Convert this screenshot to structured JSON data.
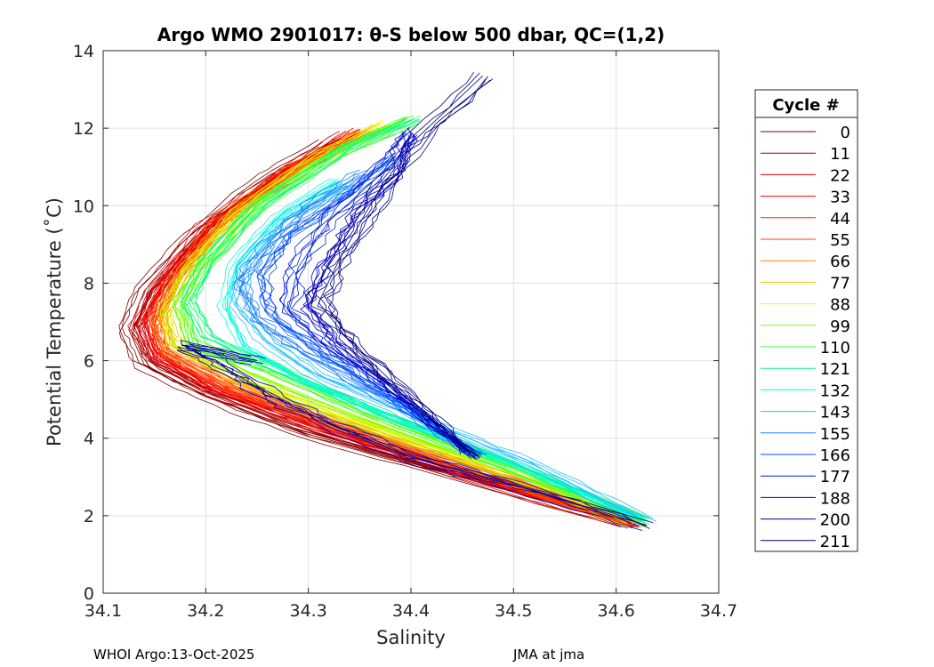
{
  "chart_data": {
    "type": "line",
    "title": "Argo WMO 2901017: θ-S below 500 dbar,  QC=(1,2)",
    "xlabel": "Salinity",
    "ylabel": "Potential Temperature (˚C)",
    "xlim": [
      34.1,
      34.7
    ],
    "ylim": [
      0,
      14
    ],
    "xticks": [
      "34.1",
      "34.2",
      "34.3",
      "34.4",
      "34.5",
      "34.6",
      "34.7"
    ],
    "yticks": [
      "0",
      "2",
      "4",
      "6",
      "8",
      "10",
      "12",
      "14"
    ],
    "grid": true,
    "legend": {
      "title": "Cycle #",
      "placement": "right-outside"
    },
    "series": [
      {
        "name": "0",
        "color": "#800000",
        "points": [
          [
            34.612,
            1.8
          ],
          [
            34.45,
            3.0
          ],
          [
            34.3,
            4.1
          ],
          [
            34.2,
            5.1
          ],
          [
            34.14,
            5.9
          ],
          [
            34.125,
            6.8
          ],
          [
            34.14,
            7.8
          ],
          [
            34.19,
            9.2
          ],
          [
            34.26,
            10.7
          ],
          [
            34.32,
            11.6
          ]
        ]
      },
      {
        "name": "11",
        "color": "#a00000",
        "points": [
          [
            34.614,
            1.8
          ],
          [
            34.45,
            3.05
          ],
          [
            34.3,
            4.2
          ],
          [
            34.2,
            5.2
          ],
          [
            34.145,
            6.0
          ],
          [
            34.13,
            6.9
          ],
          [
            34.15,
            7.9
          ],
          [
            34.2,
            9.4
          ],
          [
            34.27,
            10.8
          ],
          [
            34.33,
            11.7
          ]
        ]
      },
      {
        "name": "22",
        "color": "#e00000",
        "points": [
          [
            34.615,
            1.8
          ],
          [
            34.46,
            3.0
          ],
          [
            34.31,
            4.3
          ],
          [
            34.21,
            5.2
          ],
          [
            34.15,
            6.1
          ],
          [
            34.135,
            6.9
          ],
          [
            34.155,
            8.0
          ],
          [
            34.2,
            9.5
          ],
          [
            34.28,
            10.9
          ],
          [
            34.34,
            11.9
          ]
        ]
      },
      {
        "name": "33",
        "color": "#ff0000",
        "points": [
          [
            34.615,
            1.82
          ],
          [
            34.46,
            3.05
          ],
          [
            34.31,
            4.3
          ],
          [
            34.21,
            5.3
          ],
          [
            34.15,
            6.2
          ],
          [
            34.14,
            7.0
          ],
          [
            34.16,
            8.1
          ],
          [
            34.21,
            9.6
          ],
          [
            34.28,
            11.0
          ],
          [
            34.35,
            11.9
          ]
        ]
      },
      {
        "name": "44",
        "color": "#ff2000",
        "points": [
          [
            34.616,
            1.82
          ],
          [
            34.47,
            3.1
          ],
          [
            34.32,
            4.35
          ],
          [
            34.22,
            5.3
          ],
          [
            34.155,
            6.2
          ],
          [
            34.145,
            7.0
          ],
          [
            34.165,
            8.1
          ],
          [
            34.21,
            9.6
          ],
          [
            34.29,
            11.0
          ],
          [
            34.35,
            11.9
          ]
        ]
      },
      {
        "name": "55",
        "color": "#ff4000",
        "points": [
          [
            34.617,
            1.83
          ],
          [
            34.47,
            3.1
          ],
          [
            34.32,
            4.4
          ],
          [
            34.22,
            5.35
          ],
          [
            34.16,
            6.2
          ],
          [
            34.15,
            7.0
          ],
          [
            34.17,
            8.1
          ],
          [
            34.22,
            9.7
          ],
          [
            34.29,
            11.0
          ],
          [
            34.34,
            11.8
          ]
        ]
      },
      {
        "name": "66",
        "color": "#ff8000",
        "points": [
          [
            34.618,
            1.83
          ],
          [
            34.48,
            3.1
          ],
          [
            34.33,
            4.4
          ],
          [
            34.23,
            5.4
          ],
          [
            34.165,
            6.3
          ],
          [
            34.155,
            7.1
          ],
          [
            34.175,
            8.2
          ],
          [
            34.22,
            9.7
          ],
          [
            34.3,
            11.1
          ],
          [
            34.36,
            11.9
          ]
        ]
      },
      {
        "name": "77",
        "color": "#ffc000",
        "points": [
          [
            34.62,
            1.84
          ],
          [
            34.48,
            3.15
          ],
          [
            34.34,
            4.45
          ],
          [
            34.23,
            5.45
          ],
          [
            34.17,
            6.4
          ],
          [
            34.16,
            7.2
          ],
          [
            34.18,
            8.3
          ],
          [
            34.23,
            9.8
          ],
          [
            34.31,
            11.2
          ],
          [
            34.37,
            12.0
          ]
        ]
      },
      {
        "name": "88",
        "color": "#e0ff00",
        "points": [
          [
            34.62,
            1.84
          ],
          [
            34.49,
            3.15
          ],
          [
            34.34,
            4.5
          ],
          [
            34.24,
            5.5
          ],
          [
            34.17,
            6.4
          ],
          [
            34.165,
            7.3
          ],
          [
            34.185,
            8.3
          ],
          [
            34.235,
            9.8
          ],
          [
            34.31,
            11.2
          ],
          [
            34.38,
            12.1
          ]
        ]
      },
      {
        "name": "99",
        "color": "#80ff00",
        "points": [
          [
            34.622,
            1.85
          ],
          [
            34.49,
            3.2
          ],
          [
            34.35,
            4.5
          ],
          [
            34.25,
            5.6
          ],
          [
            34.18,
            6.5
          ],
          [
            34.17,
            7.4
          ],
          [
            34.19,
            8.4
          ],
          [
            34.24,
            9.9
          ],
          [
            34.32,
            11.3
          ],
          [
            34.39,
            12.2
          ]
        ]
      },
      {
        "name": "110",
        "color": "#40ff40",
        "points": [
          [
            34.624,
            1.85
          ],
          [
            34.5,
            3.2
          ],
          [
            34.36,
            4.6
          ],
          [
            34.26,
            5.8
          ],
          [
            34.19,
            6.3
          ],
          [
            34.175,
            7.5
          ],
          [
            34.2,
            8.5
          ],
          [
            34.25,
            10.0
          ],
          [
            34.33,
            11.4
          ],
          [
            34.4,
            12.2
          ]
        ]
      },
      {
        "name": "121",
        "color": "#00ff80",
        "points": [
          [
            34.625,
            1.86
          ],
          [
            34.5,
            3.25
          ],
          [
            34.37,
            4.6
          ],
          [
            34.27,
            5.7
          ],
          [
            34.2,
            6.6
          ],
          [
            34.18,
            7.5
          ],
          [
            34.2,
            8.6
          ],
          [
            34.25,
            10.0
          ],
          [
            34.33,
            11.4
          ],
          [
            34.4,
            12.2
          ]
        ]
      },
      {
        "name": "132",
        "color": "#00ffe0",
        "points": [
          [
            34.628,
            1.86
          ],
          [
            34.51,
            3.2
          ],
          [
            34.38,
            4.5
          ],
          [
            34.3,
            5.4
          ],
          [
            34.24,
            6.3
          ],
          [
            34.22,
            7.3
          ],
          [
            34.23,
            8.4
          ],
          [
            34.27,
            9.6
          ],
          [
            34.33,
            10.6
          ]
        ]
      },
      {
        "name": "143",
        "color": "#20c0ff",
        "points": [
          [
            34.63,
            1.86
          ],
          [
            34.52,
            3.3
          ],
          [
            34.4,
            4.6
          ],
          [
            34.31,
            5.6
          ],
          [
            34.26,
            6.5
          ],
          [
            34.23,
            7.5
          ],
          [
            34.24,
            8.5
          ],
          [
            34.28,
            9.7
          ],
          [
            34.34,
            10.5
          ]
        ]
      },
      {
        "name": "155",
        "color": "#2080ff",
        "points": [
          [
            34.46,
            3.55
          ],
          [
            34.38,
            4.9
          ],
          [
            34.3,
            6.1
          ],
          [
            34.25,
            7.0
          ],
          [
            34.23,
            8.0
          ],
          [
            34.26,
            9.0
          ],
          [
            34.3,
            10.0
          ],
          [
            34.35,
            10.8
          ]
        ]
      },
      {
        "name": "166",
        "color": "#0050ff",
        "points": [
          [
            34.46,
            3.55
          ],
          [
            34.38,
            5.0
          ],
          [
            34.31,
            6.2
          ],
          [
            34.26,
            7.2
          ],
          [
            34.25,
            8.2
          ],
          [
            34.28,
            9.3
          ],
          [
            34.33,
            10.2
          ],
          [
            34.38,
            11.3
          ]
        ]
      },
      {
        "name": "177",
        "color": "#0020e0",
        "points": [
          [
            34.46,
            3.55
          ],
          [
            34.39,
            5.0
          ],
          [
            34.32,
            6.3
          ],
          [
            34.28,
            7.3
          ],
          [
            34.29,
            8.4
          ],
          [
            34.32,
            9.6
          ],
          [
            34.37,
            10.8
          ],
          [
            34.4,
            11.8
          ]
        ]
      },
      {
        "name": "188",
        "color": "#0000c0",
        "points": [
          [
            34.46,
            3.55
          ],
          [
            34.39,
            5.1
          ],
          [
            34.33,
            6.4
          ],
          [
            34.3,
            7.4
          ],
          [
            34.32,
            8.5
          ],
          [
            34.35,
            9.8
          ],
          [
            34.39,
            10.8
          ],
          [
            34.4,
            11.9
          ]
        ]
      },
      {
        "name": "200",
        "color": "#0000a0",
        "points": [
          [
            34.63,
            1.75
          ],
          [
            34.5,
            2.8
          ],
          [
            34.4,
            3.5
          ],
          [
            34.32,
            4.4
          ],
          [
            34.27,
            5.0
          ],
          [
            34.22,
            5.8
          ],
          [
            34.18,
            6.4
          ],
          [
            34.25,
            6.0
          ]
        ]
      },
      {
        "name": "211",
        "color": "#000080",
        "points": [
          [
            34.46,
            3.55
          ],
          [
            34.4,
            5.0
          ],
          [
            34.34,
            6.5
          ],
          [
            34.31,
            7.5
          ],
          [
            34.33,
            8.6
          ],
          [
            34.36,
            10.0
          ],
          [
            34.4,
            11.6
          ],
          [
            34.47,
            13.35
          ]
        ]
      }
    ]
  },
  "footer": {
    "left": "WHOI Argo:13-Oct-2025",
    "right": "JMA at jma"
  }
}
